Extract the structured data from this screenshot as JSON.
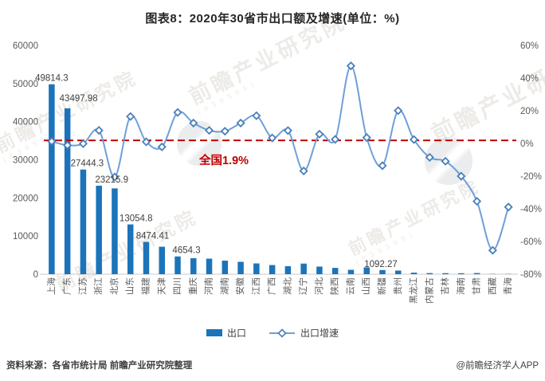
{
  "title": "图表8：2020年30省市出口额及增速(单位：%)",
  "chart_data": {
    "type": "combo-bar-line",
    "title": "图表8：2020年30省市出口额及增速(单位：%)",
    "categories": [
      "上海",
      "广东",
      "江苏",
      "浙江",
      "北京",
      "山东",
      "福建",
      "天津",
      "四川",
      "重庆",
      "河南",
      "湖南",
      "安徽",
      "江西",
      "广西",
      "湖北",
      "辽宁",
      "河北",
      "陕西",
      "云南",
      "山西",
      "新疆",
      "贵州",
      "黑龙江",
      "内蒙古",
      "吉林",
      "海南",
      "甘肃",
      "西藏",
      "青海"
    ],
    "series": [
      {
        "name": "出口",
        "type": "bar",
        "axis": "left",
        "values": [
          49814.3,
          43497.98,
          27444.3,
          23215.9,
          22500,
          13054.8,
          8474.41,
          7200,
          4654.3,
          4200,
          4075,
          3560,
          3250,
          2820,
          2400,
          2100,
          2780,
          1990,
          1650,
          1150,
          1780,
          1092.27,
          950,
          400,
          290,
          270,
          250,
          300,
          60,
          60
        ]
      },
      {
        "name": "出口增速",
        "type": "line",
        "axis": "right",
        "values": [
          1.3,
          -1.1,
          -0.1,
          8,
          -20.5,
          16.5,
          1,
          -2.1,
          19,
          12.5,
          8,
          7.5,
          12.5,
          17,
          3.4,
          7.9,
          -16.8,
          5.7,
          2.5,
          47.5,
          3.6,
          -13.6,
          20.1,
          2.4,
          -8.5,
          -10.9,
          -20,
          -35.4,
          -65.4,
          -38.9
        ]
      }
    ],
    "bar_data_labels": {
      "0": "49814.3",
      "1": "43497.98",
      "2": "27444.3",
      "3": "23215.9",
      "5": "13054.8",
      "6": "8474.41",
      "8": "4654.3",
      "21": "1092.27"
    },
    "axis_left": {
      "min": 0,
      "max": 60000,
      "ticks": [
        "60000",
        "50000",
        "40000",
        "30000",
        "20000",
        "10000",
        "0"
      ]
    },
    "axis_right": {
      "min": -80,
      "max": 60,
      "ticks": [
        "60%",
        "40%",
        "20%",
        "0%",
        "-20%",
        "-40%",
        "-60%",
        "-80%"
      ]
    },
    "reference_line": {
      "value": 1.9,
      "label_prefix": "全国",
      "label_value": "1.9%"
    },
    "grid": false,
    "legend_position": "bottom"
  },
  "legend": {
    "items": [
      {
        "label": "出口"
      },
      {
        "label": "出口增速"
      }
    ]
  },
  "footer": {
    "source": "资料来源：各省市统计局 前瞻产业研究院整理",
    "brand": "@前瞻经济学人APP"
  },
  "colors": {
    "bar": "#1b74ba",
    "line": "#6f9fd8",
    "marker_fill": "#ffffff",
    "marker_stroke": "#4a7fba",
    "reference": "#c00000",
    "axis_text": "#595959",
    "data_label": "#404040",
    "baseline": "#c9c9c9"
  },
  "watermark": {
    "text": "前瞻产业研究院",
    "sub": "(839599)"
  }
}
